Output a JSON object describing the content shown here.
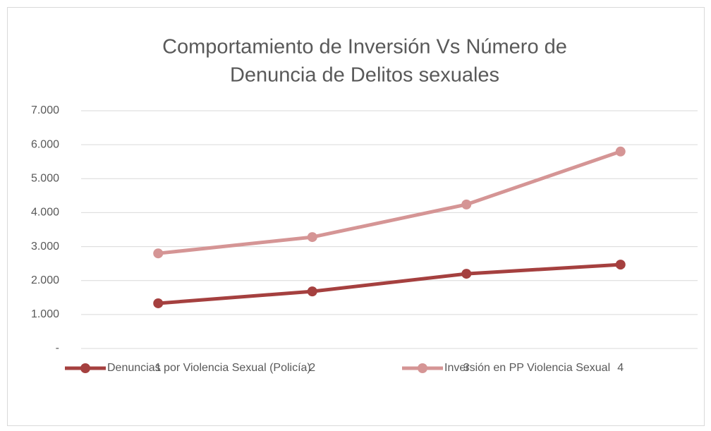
{
  "chart_data": {
    "type": "line",
    "title": [
      "Comportamiento de Inversión Vs Número de",
      "Denuncia de Delitos sexuales"
    ],
    "categories": [
      "1",
      "2",
      "3",
      "4"
    ],
    "series": [
      {
        "name": "Denuncias por Violencia Sexual (Policía)",
        "color": "#a5403f",
        "values": [
          1330,
          1680,
          2200,
          2470
        ]
      },
      {
        "name": "Inversión en  PP Violencia Sexual",
        "color": "#d59595",
        "values": [
          2800,
          3280,
          4240,
          5800
        ]
      }
    ],
    "ylim": [
      0,
      7000
    ],
    "yticks": [
      {
        "value": 0,
        "label": "-"
      },
      {
        "value": 1000,
        "label": "1.000"
      },
      {
        "value": 2000,
        "label": "2.000"
      },
      {
        "value": 3000,
        "label": "3.000"
      },
      {
        "value": 4000,
        "label": "4.000"
      },
      {
        "value": 5000,
        "label": "5.000"
      },
      {
        "value": 6000,
        "label": "6.000"
      },
      {
        "value": 7000,
        "label": "7.000"
      }
    ],
    "grid": true,
    "legend": "bottom"
  }
}
